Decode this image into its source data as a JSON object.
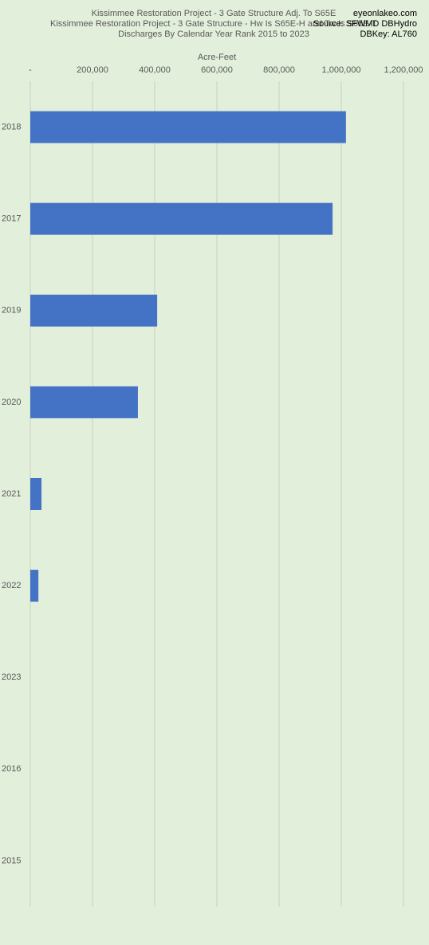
{
  "chart_data": {
    "type": "hbar",
    "title_lines": [
      "Kissimmee Restoration Project - 3 Gate Structure Adj. To S65E",
      "Kissimmee Restoration Project - 3 Gate Structure - Hw Is S65E-H and Tw Is S65E-T",
      "Discharges By Calendar Year Rank 2015 to 2023"
    ],
    "corner_lines": [
      "eyeonlakeo.com",
      "Source: SFWMD DBHydro",
      "DBKey: AL760"
    ],
    "x_axis_label": "Acre-Feet",
    "categories": [
      "2018",
      "2017",
      "2019",
      "2020",
      "2021",
      "2022",
      "2023",
      "2016",
      "2015"
    ],
    "values": [
      1015000,
      972000,
      408000,
      346000,
      36000,
      26000,
      0,
      0,
      0
    ],
    "color": "#4472c4",
    "xlim": [
      0,
      1200000
    ],
    "xticks": [
      {
        "value": 0,
        "label": "-"
      },
      {
        "value": 200000,
        "label": "200,000"
      },
      {
        "value": 400000,
        "label": "400,000"
      },
      {
        "value": 600000,
        "label": "600,000"
      },
      {
        "value": 800000,
        "label": "800,000"
      },
      {
        "value": 1000000,
        "label": "1,000,000"
      },
      {
        "value": 1200000,
        "label": "1,200,000"
      }
    ],
    "grid": true
  }
}
